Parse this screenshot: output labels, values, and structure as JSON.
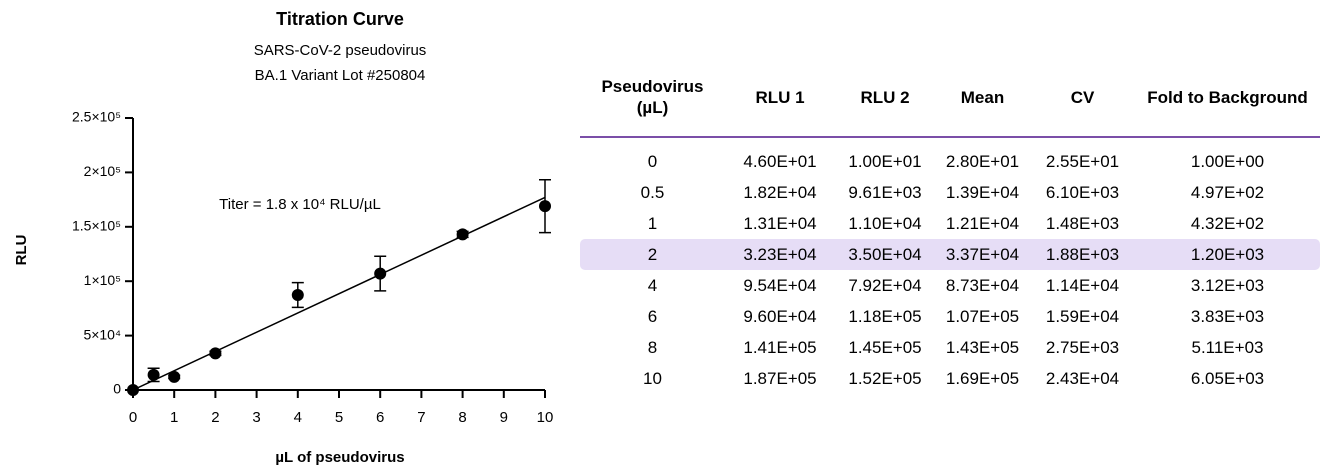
{
  "chart_data": {
    "type": "scatter",
    "title": "Titration Curve",
    "subtitle": [
      "SARS-CoV-2 pseudovirus",
      "BA.1 Variant Lot #250804"
    ],
    "annotation": "Titer = 1.8 x 10⁴ RLU/µL",
    "x_label": "µL of pseudovirus",
    "y_label": "RLU",
    "x": [
      0,
      0.5,
      1,
      2,
      4,
      6,
      8,
      10
    ],
    "values": [
      28,
      13900,
      12100,
      33700,
      87300,
      107000,
      143000,
      169000
    ],
    "errors": [
      25.5,
      6100,
      1480,
      1880,
      11400,
      15900,
      2750,
      24300
    ],
    "color": "#000000",
    "fit_line": {
      "x": [
        0,
        10
      ],
      "values": [
        0,
        177000
      ]
    },
    "xlim": [
      0,
      10
    ],
    "xticks": [
      0,
      1,
      2,
      3,
      4,
      5,
      6,
      7,
      8,
      9,
      10
    ],
    "ylim": [
      0,
      250000
    ],
    "yticks": [
      0,
      {
        "value": 50000,
        "label": "5×10⁴"
      },
      {
        "value": 100000,
        "label": "1×10⁵"
      },
      {
        "value": 150000,
        "label": "1.5×10⁵"
      },
      {
        "value": 200000,
        "label": "2×10⁵"
      },
      {
        "value": 250000,
        "label": "2.5×10⁵"
      }
    ]
  },
  "table": {
    "header": [
      "Pseudovirus (µL)",
      "RLU 1",
      "RLU 2",
      "Mean",
      "CV",
      "Fold to Background"
    ],
    "rows": [
      [
        "0",
        "4.60E+01",
        "1.00E+01",
        "2.80E+01",
        "2.55E+01",
        "1.00E+00"
      ],
      [
        "0.5",
        "1.82E+04",
        "9.61E+03",
        "1.39E+04",
        "6.10E+03",
        "4.97E+02"
      ],
      [
        "1",
        "1.31E+04",
        "1.10E+04",
        "1.21E+04",
        "1.48E+03",
        "4.32E+02"
      ],
      [
        "2",
        "3.23E+04",
        "3.50E+04",
        "3.37E+04",
        "1.88E+03",
        "1.20E+03"
      ],
      [
        "4",
        "9.54E+04",
        "7.92E+04",
        "8.73E+04",
        "1.14E+04",
        "3.12E+03"
      ],
      [
        "6",
        "9.60E+04",
        "1.18E+05",
        "1.07E+05",
        "1.59E+04",
        "3.83E+03"
      ],
      [
        "8",
        "1.41E+05",
        "1.45E+05",
        "1.43E+05",
        "2.75E+03",
        "5.11E+03"
      ],
      [
        "10",
        "1.87E+05",
        "1.52E+05",
        "1.69E+05",
        "2.43E+04",
        "6.05E+03"
      ]
    ],
    "highlight_row": 3
  }
}
